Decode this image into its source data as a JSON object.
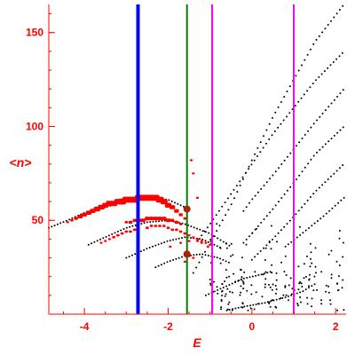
{
  "chart_data": {
    "type": "scatter",
    "title": "",
    "xlabel": "E",
    "ylabel": "<n>",
    "xlim": [
      -4.85,
      2.25
    ],
    "ylim": [
      0,
      165
    ],
    "x_ticks": [
      -4,
      -2,
      0,
      2
    ],
    "y_ticks": [
      50,
      100,
      150
    ],
    "grid": false,
    "colors": {
      "axis": "#ff0000",
      "background": "#ffffff",
      "black_series": "#000000",
      "red_series": "#ff0000",
      "blue_line": "#0000ff",
      "green_line": "#008000",
      "magenta_lines": "#ff00ff",
      "marker_fill": "#aa2200"
    },
    "vertical_lines": [
      {
        "x": -2.72,
        "color": "#0000ff"
      },
      {
        "x": -1.55,
        "color": "#008000"
      },
      {
        "x": -0.95,
        "color": "#ff00ff"
      },
      {
        "x": 1.0,
        "color": "#ff00ff"
      }
    ],
    "curves": [
      {
        "color": "#000000",
        "x_range": [
          -1.4,
          2.2
        ],
        "points": [
          [
            -1.4,
            22
          ],
          [
            -1.0,
            38
          ],
          [
            -0.5,
            58
          ],
          [
            0.0,
            82
          ],
          [
            0.5,
            105
          ],
          [
            1.0,
            125
          ],
          [
            1.5,
            145
          ],
          [
            2.2,
            165
          ]
        ]
      },
      {
        "color": "#000000",
        "x_range": [
          -1.2,
          2.2
        ],
        "points": [
          [
            -1.2,
            42
          ],
          [
            -1.0,
            48
          ],
          [
            -0.5,
            64
          ],
          [
            0.0,
            80
          ],
          [
            0.5,
            96
          ],
          [
            1.0,
            110
          ],
          [
            1.5,
            124
          ],
          [
            2.2,
            140
          ]
        ]
      },
      {
        "color": "#000000",
        "x_range": [
          -0.2,
          2.2
        ],
        "points": [
          [
            -0.2,
            55
          ],
          [
            0.0,
            61
          ],
          [
            0.5,
            74
          ],
          [
            1.0,
            88
          ],
          [
            1.5,
            102
          ],
          [
            2.2,
            120
          ]
        ]
      },
      {
        "color": "#000000",
        "x_range": [
          -0.2,
          2.2
        ],
        "points": [
          [
            -0.2,
            38
          ],
          [
            0.0,
            43
          ],
          [
            0.5,
            56
          ],
          [
            1.0,
            70
          ],
          [
            1.5,
            85
          ],
          [
            2.2,
            100
          ]
        ]
      },
      {
        "color": "#000000",
        "x_range": [
          0.0,
          2.2
        ],
        "points": [
          [
            0.0,
            29
          ],
          [
            0.5,
            40
          ],
          [
            1.0,
            52
          ],
          [
            1.5,
            65
          ],
          [
            2.2,
            80
          ]
        ]
      },
      {
        "color": "#000000",
        "x_range": [
          0.8,
          2.2
        ],
        "points": [
          [
            0.8,
            36
          ],
          [
            1.2,
            43
          ],
          [
            1.7,
            52
          ],
          [
            2.2,
            62
          ]
        ]
      },
      {
        "color": "#000000",
        "x_range": [
          -4.85,
          -1.6
        ],
        "points": [
          [
            -4.85,
            46
          ],
          [
            -4.4,
            50
          ],
          [
            -4.0,
            54
          ],
          [
            -3.5,
            57
          ],
          [
            -3.0,
            60
          ],
          [
            -2.5,
            62
          ],
          [
            -2.0,
            61
          ],
          [
            -1.6,
            57
          ]
        ]
      },
      {
        "color": "#000000",
        "x_range": [
          -3.9,
          -0.5
        ],
        "points": [
          [
            -3.9,
            37
          ],
          [
            -3.4,
            42
          ],
          [
            -3.0,
            46
          ],
          [
            -2.5,
            49
          ],
          [
            -2.0,
            50
          ],
          [
            -1.6,
            48
          ],
          [
            -1.0,
            43
          ],
          [
            -0.5,
            36
          ]
        ]
      },
      {
        "color": "#000000",
        "x_range": [
          -3.0,
          -0.7
        ],
        "points": [
          [
            -3.0,
            30
          ],
          [
            -2.5,
            35
          ],
          [
            -2.0,
            39
          ],
          [
            -1.6,
            41
          ],
          [
            -1.2,
            40
          ],
          [
            -0.7,
            35
          ]
        ]
      },
      {
        "color": "#000000",
        "x_range": [
          -2.3,
          -0.5
        ],
        "points": [
          [
            -2.3,
            25
          ],
          [
            -2.0,
            28
          ],
          [
            -1.6,
            31
          ],
          [
            -1.2,
            32
          ],
          [
            -0.8,
            30
          ],
          [
            -0.5,
            27
          ]
        ]
      },
      {
        "color": "#000000",
        "x_range": [
          -1.1,
          0.5
        ],
        "points": [
          [
            -1.1,
            10
          ],
          [
            -0.6,
            15
          ],
          [
            -0.2,
            19
          ],
          [
            0.2,
            21
          ],
          [
            0.5,
            23
          ]
        ]
      },
      {
        "color": "#000000",
        "x_range": [
          -0.6,
          1.5
        ],
        "points": [
          [
            -0.6,
            2
          ],
          [
            -0.2,
            4
          ],
          [
            0.3,
            6
          ],
          [
            0.8,
            9
          ],
          [
            1.2,
            12
          ],
          [
            1.5,
            16
          ]
        ]
      }
    ],
    "red_points": [
      {
        "x": -4.4,
        "y": 49,
        "w": 1.5
      },
      {
        "x": -4.3,
        "y": 50,
        "w": 2
      },
      {
        "x": -4.2,
        "y": 51,
        "w": 2.5
      },
      {
        "x": -4.1,
        "y": 52,
        "w": 3
      },
      {
        "x": -4.0,
        "y": 53,
        "w": 3
      },
      {
        "x": -3.9,
        "y": 54,
        "w": 3.5
      },
      {
        "x": -3.8,
        "y": 55,
        "w": 3.5
      },
      {
        "x": -3.7,
        "y": 56,
        "w": 4
      },
      {
        "x": -3.6,
        "y": 57,
        "w": 4
      },
      {
        "x": -3.5,
        "y": 58,
        "w": 4
      },
      {
        "x": -3.4,
        "y": 59,
        "w": 4.5
      },
      {
        "x": -3.3,
        "y": 59,
        "w": 4.5
      },
      {
        "x": -3.2,
        "y": 60,
        "w": 4.5
      },
      {
        "x": -3.1,
        "y": 60,
        "w": 5
      },
      {
        "x": -3.0,
        "y": 61,
        "w": 5
      },
      {
        "x": -2.9,
        "y": 61,
        "w": 5
      },
      {
        "x": -2.8,
        "y": 61,
        "w": 5
      },
      {
        "x": -2.7,
        "y": 62,
        "w": 5
      },
      {
        "x": -2.6,
        "y": 62,
        "w": 5
      },
      {
        "x": -2.5,
        "y": 62,
        "w": 5
      },
      {
        "x": -2.4,
        "y": 62,
        "w": 5
      },
      {
        "x": -2.3,
        "y": 62,
        "w": 5
      },
      {
        "x": -2.2,
        "y": 61,
        "w": 5
      },
      {
        "x": -2.1,
        "y": 60,
        "w": 4.5
      },
      {
        "x": -2.0,
        "y": 58,
        "w": 4
      },
      {
        "x": -1.9,
        "y": 57,
        "w": 3.5
      },
      {
        "x": -1.8,
        "y": 55,
        "w": 3
      },
      {
        "x": -1.7,
        "y": 53,
        "w": 2.5
      },
      {
        "x": -1.6,
        "y": 51,
        "w": 2
      },
      {
        "x": -3.0,
        "y": 49,
        "w": 2
      },
      {
        "x": -2.9,
        "y": 49,
        "w": 2.5
      },
      {
        "x": -2.8,
        "y": 50,
        "w": 2.5
      },
      {
        "x": -2.7,
        "y": 50,
        "w": 3
      },
      {
        "x": -2.6,
        "y": 50,
        "w": 3
      },
      {
        "x": -2.5,
        "y": 51,
        "w": 3
      },
      {
        "x": -2.4,
        "y": 51,
        "w": 3
      },
      {
        "x": -2.3,
        "y": 51,
        "w": 3
      },
      {
        "x": -2.2,
        "y": 51,
        "w": 3
      },
      {
        "x": -2.1,
        "y": 51,
        "w": 3
      },
      {
        "x": -2.0,
        "y": 50,
        "w": 3
      },
      {
        "x": -1.9,
        "y": 50,
        "w": 2.5
      },
      {
        "x": -1.8,
        "y": 49,
        "w": 2.5
      },
      {
        "x": -1.7,
        "y": 48,
        "w": 2
      },
      {
        "x": -3.6,
        "y": 38,
        "w": 1.5
      },
      {
        "x": -3.5,
        "y": 39,
        "w": 1.5
      },
      {
        "x": -3.4,
        "y": 40,
        "w": 1.5
      },
      {
        "x": -3.3,
        "y": 41,
        "w": 2
      },
      {
        "x": -3.2,
        "y": 42,
        "w": 2
      },
      {
        "x": -3.1,
        "y": 43,
        "w": 2
      },
      {
        "x": -3.0,
        "y": 44,
        "w": 2
      },
      {
        "x": -2.9,
        "y": 44,
        "w": 2
      },
      {
        "x": -2.8,
        "y": 45,
        "w": 2
      },
      {
        "x": -2.5,
        "y": 46,
        "w": 2
      },
      {
        "x": -2.4,
        "y": 47,
        "w": 2
      },
      {
        "x": -2.3,
        "y": 47,
        "w": 2
      },
      {
        "x": -2.2,
        "y": 47,
        "w": 2
      },
      {
        "x": -2.1,
        "y": 47,
        "w": 2
      },
      {
        "x": -2.0,
        "y": 46,
        "w": 2
      },
      {
        "x": -1.9,
        "y": 45,
        "w": 2
      },
      {
        "x": -1.8,
        "y": 45,
        "w": 2
      },
      {
        "x": -1.7,
        "y": 44,
        "w": 2
      },
      {
        "x": -1.6,
        "y": 43,
        "w": 2
      },
      {
        "x": -1.5,
        "y": 42,
        "w": 1.5
      },
      {
        "x": -1.4,
        "y": 41,
        "w": 1.5
      },
      {
        "x": -1.3,
        "y": 40,
        "w": 1.5
      },
      {
        "x": -1.2,
        "y": 39,
        "w": 1.5
      },
      {
        "x": -1.1,
        "y": 38,
        "w": 1.5
      },
      {
        "x": -1.0,
        "y": 37,
        "w": 1.5
      },
      {
        "x": -1.95,
        "y": 36,
        "w": 1.5
      },
      {
        "x": -1.7,
        "y": 38,
        "w": 1.5
      },
      {
        "x": -1.5,
        "y": 39,
        "w": 1.5
      },
      {
        "x": -1.3,
        "y": 39,
        "w": 1.5
      },
      {
        "x": -1.2,
        "y": 38,
        "w": 1.5
      },
      {
        "x": -1.05,
        "y": 36,
        "w": 1.5
      },
      {
        "x": -1.6,
        "y": 28,
        "w": 1.5
      },
      {
        "x": -1.5,
        "y": 31,
        "w": 1.5
      },
      {
        "x": -1.4,
        "y": 30,
        "w": 1.5
      },
      {
        "x": -1.45,
        "y": 82,
        "w": 1.5
      },
      {
        "x": -1.4,
        "y": 75,
        "w": 1.5
      },
      {
        "x": -1.3,
        "y": 62,
        "w": 1.5
      }
    ],
    "big_markers": [
      {
        "x": -1.55,
        "y": 56
      },
      {
        "x": -1.55,
        "y": 32
      }
    ]
  }
}
